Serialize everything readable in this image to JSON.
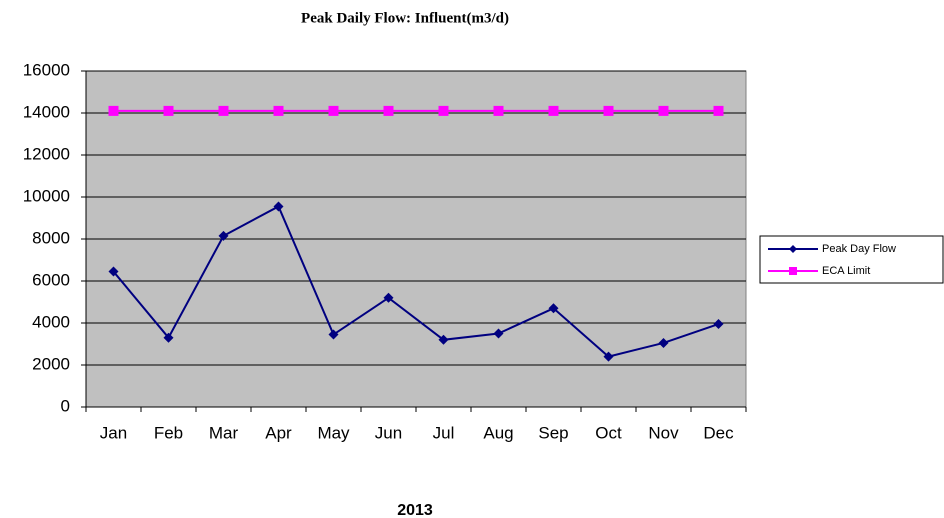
{
  "chart_data": {
    "type": "line",
    "title": "Peak Daily Flow: Influent(m3/d)",
    "x_label": "2013",
    "categories": [
      "Jan",
      "Feb",
      "Mar",
      "Apr",
      "May",
      "Jun",
      "Jul",
      "Aug",
      "Sep",
      "Oct",
      "Nov",
      "Dec"
    ],
    "series": [
      {
        "name": "Peak Day Flow",
        "color": "#000080",
        "marker": "diamond",
        "values": [
          6450,
          3300,
          8150,
          9550,
          3450,
          5200,
          3200,
          3500,
          4700,
          2400,
          3050,
          3950
        ]
      },
      {
        "name": "ECA Limit",
        "color": "#ff00ff",
        "marker": "square",
        "values": [
          14100,
          14100,
          14100,
          14100,
          14100,
          14100,
          14100,
          14100,
          14100,
          14100,
          14100,
          14100
        ]
      }
    ],
    "ylim": [
      0,
      16000
    ],
    "yticks": [
      0,
      2000,
      4000,
      6000,
      8000,
      10000,
      12000,
      14000,
      16000
    ],
    "grid": true,
    "legend": "right",
    "plot_background": "#c0c0c0"
  }
}
